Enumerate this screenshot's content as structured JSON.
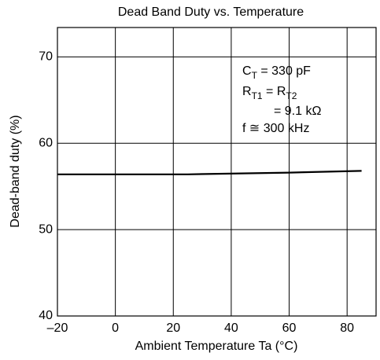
{
  "chart_data": {
    "type": "line",
    "title": "Dead Band Duty vs. Temperature",
    "x_label": "Ambient Temperature Ta (°C)",
    "y_label": "Dead-band duty (%)",
    "x": [
      -20,
      25,
      60,
      85
    ],
    "series": [
      {
        "color": "#000000",
        "values": [
          56.4,
          56.4,
          56.6,
          56.8
        ]
      }
    ],
    "xlim": [
      -20,
      90
    ],
    "ylim": [
      40,
      73.4
    ],
    "xticks": [
      {
        "value": -20,
        "label": "–20"
      },
      0,
      20,
      40,
      60,
      80
    ],
    "yticks": [
      40,
      50,
      60,
      70
    ],
    "grid": true,
    "annotation": [
      [
        "C",
        "T",
        " = 330 pF"
      ],
      [
        "R",
        "T1",
        " = R",
        "T2"
      ],
      [
        "= 9.1 kΩ"
      ],
      [
        "f ≅ 300 kHz"
      ]
    ]
  }
}
